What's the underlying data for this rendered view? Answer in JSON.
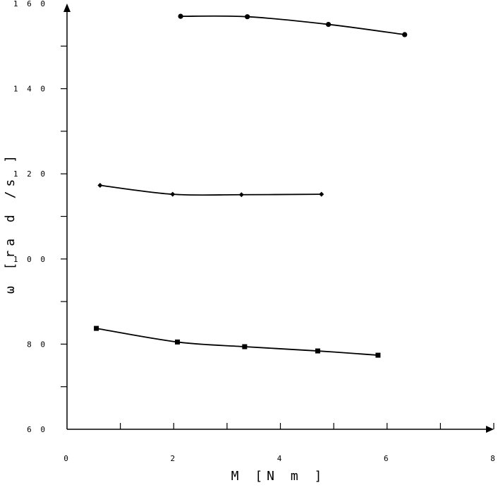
{
  "chart_data": {
    "type": "line",
    "xlabel": "M   [N m ]",
    "ylabel": "ω [ra d /s ]",
    "xlim": [
      0,
      8
    ],
    "ylim": [
      60,
      160
    ],
    "x_ticks": [
      0,
      2,
      4,
      6,
      8
    ],
    "x_tick_labels": [
      "0",
      "2",
      "4",
      "6",
      "8"
    ],
    "y_ticks": [
      60,
      80,
      100,
      120,
      140,
      160
    ],
    "y_tick_labels": [
      "6 0",
      "8 0",
      "1 0 0",
      "1 2 0",
      "1 4 0",
      "1 6 0"
    ],
    "grid": false,
    "series": [
      {
        "marker": "circle",
        "color": "#000000",
        "points": [
          [
            2.13,
            157.0
          ],
          [
            3.38,
            156.9
          ],
          [
            4.9,
            155.1
          ],
          [
            6.33,
            152.7
          ]
        ]
      },
      {
        "marker": "diamond",
        "color": "#000000",
        "points": [
          [
            0.62,
            117.3
          ],
          [
            1.98,
            115.2
          ],
          [
            3.27,
            115.1
          ],
          [
            4.77,
            115.2
          ]
        ]
      },
      {
        "marker": "square",
        "color": "#000000",
        "points": [
          [
            0.55,
            83.7
          ],
          [
            2.07,
            80.5
          ],
          [
            3.33,
            79.4
          ],
          [
            4.7,
            78.4
          ],
          [
            5.83,
            77.4
          ]
        ]
      }
    ]
  }
}
